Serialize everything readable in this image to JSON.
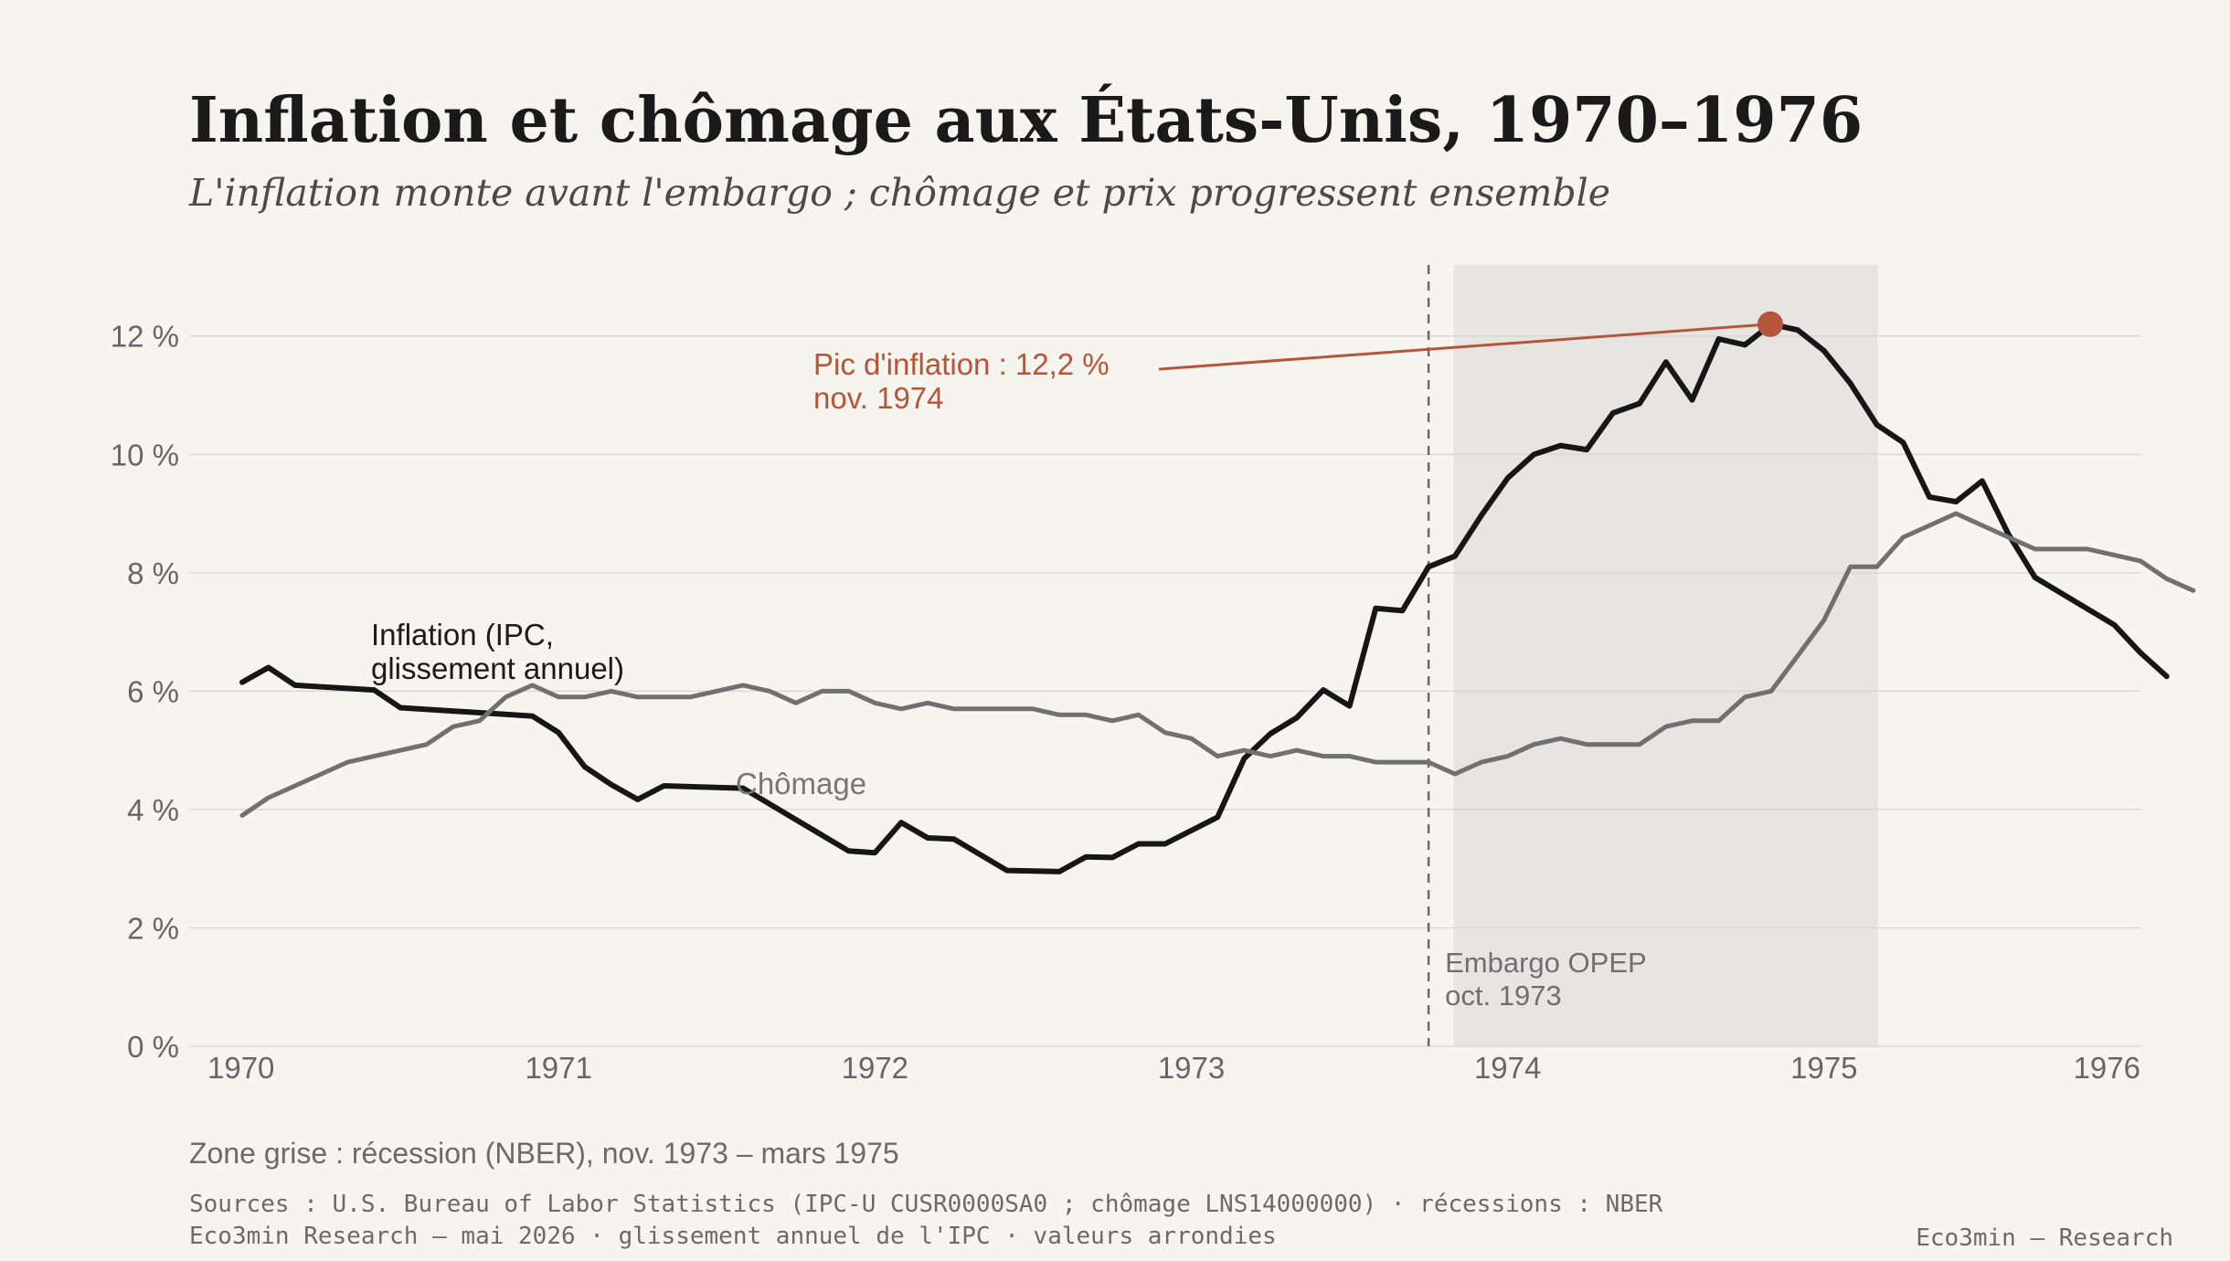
{
  "title": "Inflation et chômage aux États-Unis, 1970–1976",
  "subtitle": "L'inflation monte avant l'embargo ; chômage et prix progressent ensemble",
  "note": "Zone grise : récession (NBER), nov. 1973 – mars 1975",
  "sources": "Sources : U.S. Bureau of Labor Statistics (IPC-U CUSR0000SA0 ; chômage LNS14000000) · récessions : NBER",
  "credit": "Eco3min Research — mai 2026 · glissement annuel de l'IPC · valeurs arrondies",
  "brand": "Eco3min — Research",
  "colors": {
    "background": "#f6f4ee",
    "inflation": "#161616",
    "unemployment": "#707070",
    "accent": "#b5553a",
    "recession": "#e6e5e2",
    "grid": "#d8d8d4"
  },
  "chart_data": {
    "type": "line",
    "x_ticks": [
      "1970",
      "1971",
      "1972",
      "1973",
      "1974",
      "1975",
      "1976"
    ],
    "xlim": [
      1970.0,
      1976.0
    ],
    "y_ticks": [
      "0 %",
      "2 %",
      "4 %",
      "6 %",
      "8 %",
      "10 %",
      "12 %"
    ],
    "ylim": [
      0,
      13.2
    ],
    "grid": true,
    "recession": {
      "start": 1973.83,
      "end": 1975.17
    },
    "embargo": {
      "x": 1973.75,
      "label_lines": [
        "Embargo OPEP",
        "oct. 1973"
      ]
    },
    "peak": {
      "x": 1974.83,
      "y": 12.2,
      "label_lines": [
        "Pic d'inflation : 12,2 %",
        "nov. 1974"
      ]
    },
    "series": [
      {
        "name": "Inflation (IPC, glissement annuel)",
        "label_lines": [
          "Inflation (IPC,",
          "glissement annuel)"
        ],
        "points": [
          [
            1970.0,
            6.15
          ],
          [
            1970.083,
            6.4
          ],
          [
            1970.167,
            6.1
          ],
          [
            1970.417,
            6.02
          ],
          [
            1970.5,
            5.72
          ],
          [
            1970.917,
            5.58
          ],
          [
            1971.0,
            5.3
          ],
          [
            1971.083,
            4.72
          ],
          [
            1971.167,
            4.42
          ],
          [
            1971.25,
            4.17
          ],
          [
            1971.333,
            4.4
          ],
          [
            1971.583,
            4.36
          ],
          [
            1971.917,
            3.3
          ],
          [
            1972.0,
            3.27
          ],
          [
            1972.083,
            3.78
          ],
          [
            1972.167,
            3.52
          ],
          [
            1972.25,
            3.5
          ],
          [
            1972.417,
            2.97
          ],
          [
            1972.583,
            2.95
          ],
          [
            1972.667,
            3.2
          ],
          [
            1972.75,
            3.19
          ],
          [
            1972.833,
            3.42
          ],
          [
            1972.917,
            3.42
          ],
          [
            1973.083,
            3.87
          ],
          [
            1973.167,
            4.86
          ],
          [
            1973.25,
            5.28
          ],
          [
            1973.333,
            5.55
          ],
          [
            1973.417,
            6.02
          ],
          [
            1973.5,
            5.75
          ],
          [
            1973.583,
            7.4
          ],
          [
            1973.667,
            7.36
          ],
          [
            1973.75,
            8.1
          ],
          [
            1973.833,
            8.28
          ],
          [
            1973.917,
            8.97
          ],
          [
            1974.0,
            9.6
          ],
          [
            1974.083,
            10.0
          ],
          [
            1974.167,
            10.15
          ],
          [
            1974.25,
            10.08
          ],
          [
            1974.333,
            10.7
          ],
          [
            1974.417,
            10.86
          ],
          [
            1974.5,
            11.56
          ],
          [
            1974.583,
            10.92
          ],
          [
            1974.667,
            11.95
          ],
          [
            1974.75,
            11.85
          ],
          [
            1974.833,
            12.2
          ],
          [
            1974.917,
            12.1
          ],
          [
            1975.0,
            11.75
          ],
          [
            1975.083,
            11.2
          ],
          [
            1975.167,
            10.5
          ],
          [
            1975.25,
            10.2
          ],
          [
            1975.333,
            9.28
          ],
          [
            1975.417,
            9.2
          ],
          [
            1975.5,
            9.55
          ],
          [
            1975.583,
            8.65
          ],
          [
            1975.667,
            7.92
          ],
          [
            1975.917,
            7.12
          ],
          [
            1976.0,
            6.65
          ],
          [
            1976.083,
            6.25
          ]
        ]
      },
      {
        "name": "Chômage",
        "label_lines": [
          "Chômage"
        ],
        "points": [
          [
            1970.0,
            3.9
          ],
          [
            1970.083,
            4.2
          ],
          [
            1970.167,
            4.4
          ],
          [
            1970.333,
            4.8
          ],
          [
            1970.583,
            5.1
          ],
          [
            1970.667,
            5.4
          ],
          [
            1970.75,
            5.5
          ],
          [
            1970.833,
            5.9
          ],
          [
            1970.917,
            6.1
          ],
          [
            1971.0,
            5.9
          ],
          [
            1971.083,
            5.9
          ],
          [
            1971.167,
            6.0
          ],
          [
            1971.25,
            5.9
          ],
          [
            1971.417,
            5.9
          ],
          [
            1971.583,
            6.1
          ],
          [
            1971.667,
            6.0
          ],
          [
            1971.75,
            5.8
          ],
          [
            1971.833,
            6.0
          ],
          [
            1971.917,
            6.0
          ],
          [
            1972.0,
            5.8
          ],
          [
            1972.083,
            5.7
          ],
          [
            1972.167,
            5.8
          ],
          [
            1972.25,
            5.7
          ],
          [
            1972.5,
            5.7
          ],
          [
            1972.583,
            5.6
          ],
          [
            1972.667,
            5.6
          ],
          [
            1972.75,
            5.5
          ],
          [
            1972.833,
            5.6
          ],
          [
            1972.917,
            5.3
          ],
          [
            1973.0,
            5.2
          ],
          [
            1973.083,
            4.9
          ],
          [
            1973.167,
            5.0
          ],
          [
            1973.25,
            4.9
          ],
          [
            1973.333,
            5.0
          ],
          [
            1973.417,
            4.9
          ],
          [
            1973.5,
            4.9
          ],
          [
            1973.583,
            4.8
          ],
          [
            1973.667,
            4.8
          ],
          [
            1973.75,
            4.8
          ],
          [
            1973.833,
            4.6
          ],
          [
            1973.917,
            4.8
          ],
          [
            1974.0,
            4.9
          ],
          [
            1974.083,
            5.1
          ],
          [
            1974.167,
            5.2
          ],
          [
            1974.25,
            5.1
          ],
          [
            1974.417,
            5.1
          ],
          [
            1974.5,
            5.4
          ],
          [
            1974.583,
            5.5
          ],
          [
            1974.667,
            5.5
          ],
          [
            1974.75,
            5.9
          ],
          [
            1974.833,
            6.0
          ],
          [
            1974.917,
            6.6
          ],
          [
            1975.0,
            7.2
          ],
          [
            1975.083,
            8.1
          ],
          [
            1975.167,
            8.1
          ],
          [
            1975.25,
            8.6
          ],
          [
            1975.417,
            9.0
          ],
          [
            1975.5,
            8.8
          ],
          [
            1975.583,
            8.6
          ],
          [
            1975.667,
            8.4
          ],
          [
            1975.833,
            8.4
          ],
          [
            1975.917,
            8.3
          ],
          [
            1976.0,
            8.2
          ],
          [
            1976.083,
            7.9
          ],
          [
            1976.167,
            7.7
          ]
        ]
      }
    ]
  }
}
